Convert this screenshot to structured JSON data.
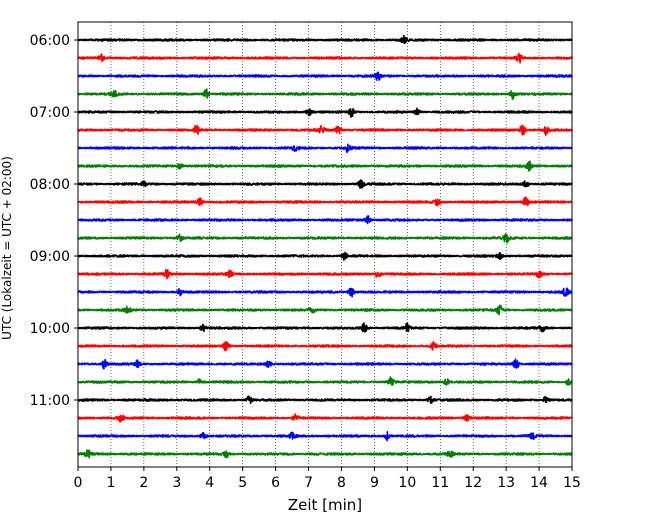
{
  "chart_data": {
    "type": "line",
    "title": "",
    "xlabel": "Zeit  [min]",
    "ylabel": "UTC (Lokalzeit = UTC + 02:00)",
    "xlim": [
      0,
      15
    ],
    "xticks": [
      "0",
      "1",
      "2",
      "3",
      "4",
      "5",
      "6",
      "7",
      "8",
      "9",
      "10",
      "11",
      "12",
      "13",
      "14",
      "15"
    ],
    "yticks": [
      "06:00",
      "07:00",
      "08:00",
      "09:00",
      "10:00",
      "11:00"
    ],
    "grid": "vertical dotted",
    "colors": [
      "#000000",
      "#ff0000",
      "#0000ff",
      "#008000"
    ],
    "trace_minutes_per_line": 15,
    "traces": [
      {
        "start": "06:00",
        "color": "#000000",
        "events": [
          {
            "t": 9.9,
            "a": 0.35
          }
        ]
      },
      {
        "start": "06:15",
        "color": "#ff0000",
        "events": [
          {
            "t": 0.7,
            "a": 0.45
          },
          {
            "t": 13.4,
            "a": 0.5
          }
        ]
      },
      {
        "start": "06:30",
        "color": "#0000ff",
        "events": [
          {
            "t": 9.1,
            "a": 0.45
          }
        ]
      },
      {
        "start": "06:45",
        "color": "#008000",
        "events": [
          {
            "t": 1.1,
            "a": 0.3
          },
          {
            "t": 3.9,
            "a": 0.45
          },
          {
            "t": 13.2,
            "a": 0.45
          }
        ]
      },
      {
        "start": "07:00",
        "color": "#000000",
        "events": [
          {
            "t": 7.0,
            "a": 0.35
          },
          {
            "t": 8.3,
            "a": 0.45
          },
          {
            "t": 10.3,
            "a": 0.3
          }
        ]
      },
      {
        "start": "07:15",
        "color": "#ff0000",
        "events": [
          {
            "t": 3.6,
            "a": 0.45
          },
          {
            "t": 7.4,
            "a": 0.35
          },
          {
            "t": 7.9,
            "a": 0.35
          },
          {
            "t": 13.5,
            "a": 0.45
          },
          {
            "t": 14.2,
            "a": 0.45
          }
        ]
      },
      {
        "start": "07:30",
        "color": "#0000ff",
        "events": [
          {
            "t": 6.6,
            "a": 0.3
          },
          {
            "t": 8.2,
            "a": 0.45
          }
        ]
      },
      {
        "start": "07:45",
        "color": "#008000",
        "events": [
          {
            "t": 3.1,
            "a": 0.35
          },
          {
            "t": 13.7,
            "a": 0.45
          }
        ]
      },
      {
        "start": "08:00",
        "color": "#000000",
        "events": [
          {
            "t": 2.0,
            "a": 0.25
          },
          {
            "t": 8.6,
            "a": 0.45
          },
          {
            "t": 13.6,
            "a": 0.35
          }
        ]
      },
      {
        "start": "08:15",
        "color": "#ff0000",
        "events": [
          {
            "t": 3.7,
            "a": 0.35
          },
          {
            "t": 10.9,
            "a": 0.35
          },
          {
            "t": 13.6,
            "a": 0.45
          }
        ]
      },
      {
        "start": "08:30",
        "color": "#0000ff",
        "events": [
          {
            "t": 8.8,
            "a": 0.4
          }
        ]
      },
      {
        "start": "08:45",
        "color": "#008000",
        "events": [
          {
            "t": 3.1,
            "a": 0.3
          },
          {
            "t": 13.0,
            "a": 0.45
          }
        ]
      },
      {
        "start": "09:00",
        "color": "#000000",
        "events": [
          {
            "t": 8.1,
            "a": 0.35
          },
          {
            "t": 12.8,
            "a": 0.3
          }
        ]
      },
      {
        "start": "09:15",
        "color": "#ff0000",
        "events": [
          {
            "t": 2.7,
            "a": 0.4
          },
          {
            "t": 4.6,
            "a": 0.35
          },
          {
            "t": 9.1,
            "a": 0.4
          },
          {
            "t": 14.0,
            "a": 0.35
          }
        ]
      },
      {
        "start": "09:30",
        "color": "#0000ff",
        "events": [
          {
            "t": 3.1,
            "a": 0.3
          },
          {
            "t": 8.3,
            "a": 0.45
          },
          {
            "t": 14.8,
            "a": 0.5
          }
        ]
      },
      {
        "start": "09:45",
        "color": "#008000",
        "events": [
          {
            "t": 1.5,
            "a": 0.35
          },
          {
            "t": 7.1,
            "a": 0.3
          },
          {
            "t": 12.8,
            "a": 0.45
          }
        ]
      },
      {
        "start": "10:00",
        "color": "#000000",
        "events": [
          {
            "t": 3.8,
            "a": 0.3
          },
          {
            "t": 8.7,
            "a": 0.45
          },
          {
            "t": 10.0,
            "a": 0.4
          },
          {
            "t": 14.1,
            "a": 0.3
          }
        ]
      },
      {
        "start": "10:15",
        "color": "#ff0000",
        "events": [
          {
            "t": 4.5,
            "a": 0.45
          },
          {
            "t": 10.8,
            "a": 0.35
          }
        ]
      },
      {
        "start": "10:30",
        "color": "#0000ff",
        "events": [
          {
            "t": 0.8,
            "a": 0.45
          },
          {
            "t": 1.8,
            "a": 0.3
          },
          {
            "t": 5.8,
            "a": 0.35
          },
          {
            "t": 13.3,
            "a": 0.45
          }
        ]
      },
      {
        "start": "10:45",
        "color": "#008000",
        "events": [
          {
            "t": 3.7,
            "a": 0.3
          },
          {
            "t": 9.5,
            "a": 0.45
          },
          {
            "t": 11.2,
            "a": 0.3
          },
          {
            "t": 14.9,
            "a": 0.45
          }
        ]
      },
      {
        "start": "11:00",
        "color": "#000000",
        "events": [
          {
            "t": 5.2,
            "a": 0.35
          },
          {
            "t": 10.7,
            "a": 0.3
          },
          {
            "t": 14.2,
            "a": 0.3
          }
        ]
      },
      {
        "start": "11:15",
        "color": "#ff0000",
        "events": [
          {
            "t": 1.3,
            "a": 0.35
          },
          {
            "t": 6.6,
            "a": 0.4
          },
          {
            "t": 11.8,
            "a": 0.35
          }
        ]
      },
      {
        "start": "11:30",
        "color": "#0000ff",
        "events": [
          {
            "t": 3.8,
            "a": 0.3
          },
          {
            "t": 6.5,
            "a": 0.3
          },
          {
            "t": 9.4,
            "a": 0.45
          },
          {
            "t": 13.8,
            "a": 0.3
          }
        ]
      },
      {
        "start": "11:45",
        "color": "#008000",
        "events": [
          {
            "t": 0.3,
            "a": 0.35
          },
          {
            "t": 4.5,
            "a": 0.3
          },
          {
            "t": 11.3,
            "a": 0.35
          }
        ]
      }
    ]
  }
}
